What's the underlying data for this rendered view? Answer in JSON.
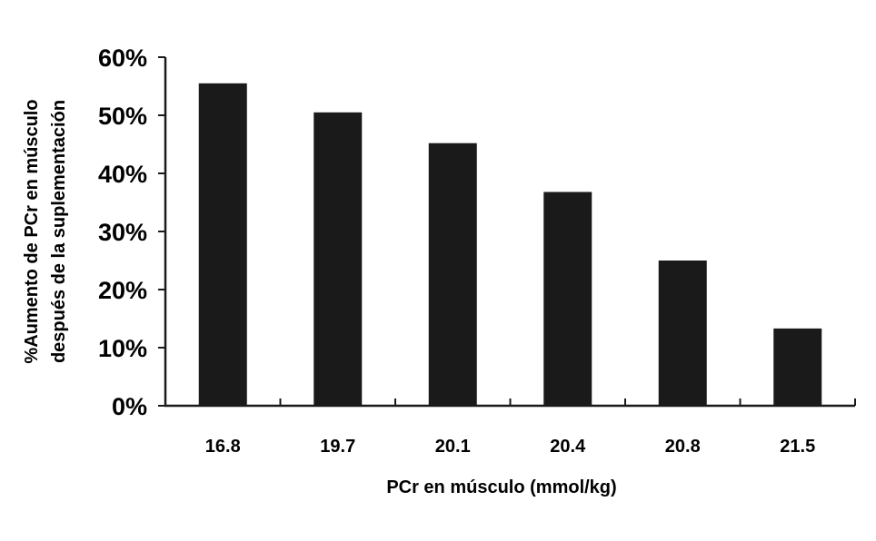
{
  "chart_data": {
    "type": "bar",
    "categories": [
      "16.8",
      "19.7",
      "20.1",
      "20.4",
      "20.8",
      "21.5"
    ],
    "values": [
      55.5,
      50.5,
      45.2,
      36.8,
      25.0,
      13.3
    ],
    "value_format": "percent",
    "yticks": [
      "0%",
      "10%",
      "20%",
      "30%",
      "40%",
      "50%",
      "60%"
    ],
    "ylim": [
      0,
      60
    ],
    "xlabel": "PCr en músculo (mmol/kg)",
    "ylabel_line1": "%Aumento de PCr en músculo",
    "ylabel_line2": "después de la suplementación",
    "grid": false,
    "legend": "none",
    "colors": {
      "bar": "#1a1a1a",
      "axis": "#1a1a1a"
    }
  }
}
